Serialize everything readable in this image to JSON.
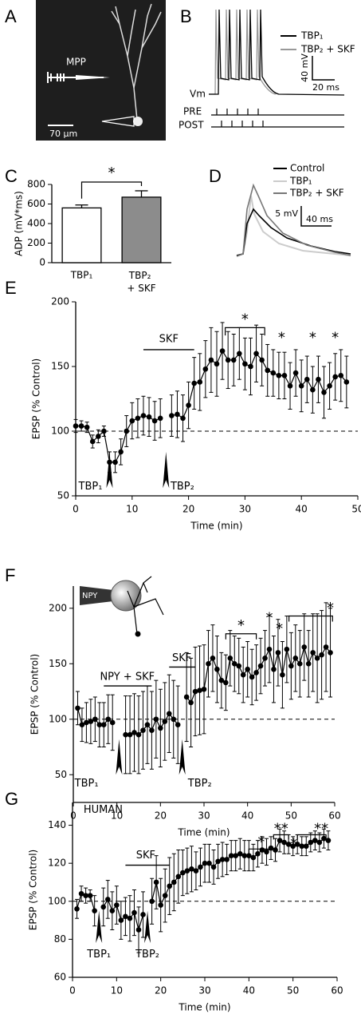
{
  "panel_labels": [
    "A",
    "B",
    "C",
    "D",
    "E",
    "F",
    "G"
  ],
  "panel_a": {
    "stimulus_label": "MPP",
    "scale_bar": "70 µm"
  },
  "panel_b": {
    "legend": [
      "TBP₁",
      "TBP₂ + SKF"
    ],
    "scale_y": "40 mV",
    "scale_x": "20 ms",
    "rows": [
      "Vm",
      "PRE",
      "POST"
    ]
  },
  "panel_d": {
    "legend": [
      "Control",
      "TBP₁",
      "TBP₂ + SKF"
    ],
    "scale_y": "5 mV",
    "scale_x": "40 ms"
  },
  "chart_data": [
    {
      "type": "bar",
      "ylabel": "ADP (mV*ms)",
      "categories": [
        "TBP₁",
        "TBP₂ + SKF"
      ],
      "values": [
        560,
        670
      ],
      "errors": [
        30,
        65
      ],
      "colors": [
        "#ffffff",
        "#8c8c8c"
      ],
      "ylim": [
        0,
        800
      ],
      "yticks": [
        0,
        200,
        400,
        600,
        800
      ],
      "annotations": [
        "*"
      ]
    },
    {
      "type": "line",
      "xlabel": "Time (min)",
      "ylabel": "EPSP (% Control)",
      "color": "#000000",
      "x": [
        0,
        1,
        2,
        3,
        4,
        5,
        6,
        7,
        8,
        9,
        10,
        11,
        12,
        13,
        14,
        15,
        16,
        17,
        18,
        19,
        20,
        21,
        22,
        23,
        24,
        25,
        26,
        27,
        28,
        29,
        30,
        31,
        32,
        33,
        34,
        35,
        36,
        37,
        38,
        39,
        40,
        41,
        42,
        43,
        44,
        45,
        46,
        47,
        48
      ],
      "values": [
        104,
        104,
        103,
        92,
        96,
        100,
        76,
        76,
        84,
        100,
        108,
        110,
        112,
        111,
        108,
        110,
        null,
        112,
        113,
        110,
        120,
        137,
        138,
        148,
        155,
        152,
        162,
        155,
        155,
        160,
        152,
        150,
        160,
        155,
        147,
        145,
        143,
        143,
        135,
        145,
        135,
        140,
        132,
        140,
        130,
        135,
        142,
        143,
        138
      ],
      "errors": [
        5,
        4,
        4,
        5,
        5,
        4,
        8,
        8,
        10,
        12,
        14,
        15,
        15,
        15,
        15,
        15,
        null,
        16,
        18,
        18,
        18,
        20,
        22,
        22,
        25,
        25,
        22,
        22,
        20,
        20,
        20,
        22,
        22,
        20,
        20,
        18,
        18,
        18,
        18,
        18,
        20,
        18,
        18,
        18,
        20,
        18,
        18,
        20,
        20
      ],
      "xlim": [
        0,
        50
      ],
      "xticks": [
        0,
        10,
        20,
        30,
        40,
        50
      ],
      "ylim": [
        50,
        200
      ],
      "yticks": [
        50,
        100,
        150,
        200
      ],
      "reference_line": 100,
      "annotations": [
        "SKF",
        "*",
        "*",
        "*",
        "*",
        "TBP₁",
        "TBP₂"
      ]
    },
    {
      "type": "line",
      "xlabel": "Time (min)",
      "ylabel": "EPSP (% Control)",
      "color": "#000000",
      "inset_label": "NPY",
      "x": [
        1,
        2,
        3,
        4,
        5,
        6,
        7,
        8,
        9,
        10,
        11,
        12,
        13,
        14,
        15,
        16,
        17,
        18,
        19,
        20,
        21,
        22,
        23,
        24,
        25,
        26,
        27,
        28,
        29,
        30,
        31,
        32,
        33,
        34,
        35,
        36,
        37,
        38,
        39,
        40,
        41,
        42,
        43,
        44,
        45,
        46,
        47,
        48,
        49,
        50,
        51,
        52,
        53,
        54,
        55,
        56,
        57,
        58,
        59
      ],
      "values": [
        110,
        95,
        97,
        98,
        100,
        95,
        95,
        100,
        97,
        null,
        null,
        86,
        86,
        88,
        86,
        90,
        95,
        90,
        100,
        92,
        98,
        105,
        100,
        95,
        null,
        120,
        115,
        125,
        126,
        127,
        150,
        155,
        145,
        135,
        133,
        155,
        150,
        148,
        140,
        145,
        138,
        142,
        148,
        155,
        163,
        145,
        160,
        140,
        163,
        148,
        155,
        150,
        165,
        150,
        160,
        155,
        158,
        165,
        160
      ],
      "errors": [
        15,
        15,
        18,
        20,
        20,
        20,
        20,
        22,
        25,
        null,
        null,
        35,
        35,
        35,
        35,
        35,
        35,
        35,
        35,
        35,
        35,
        35,
        35,
        35,
        null,
        40,
        40,
        40,
        40,
        40,
        30,
        30,
        30,
        25,
        25,
        25,
        25,
        25,
        25,
        25,
        25,
        25,
        25,
        25,
        30,
        30,
        30,
        30,
        30,
        30,
        30,
        30,
        30,
        30,
        35,
        40,
        40,
        40,
        40
      ],
      "xlim": [
        0,
        60
      ],
      "xticks": [
        0,
        10,
        20,
        30,
        40,
        50,
        60
      ],
      "ylim": [
        25,
        220
      ],
      "yticks": [
        50,
        100,
        150,
        200
      ],
      "reference_line": 100,
      "annotations": [
        "NPY + SKF",
        "SKF",
        "*",
        "*",
        "*",
        "*",
        "TBP₁",
        "TBP₂"
      ]
    },
    {
      "type": "line",
      "xlabel": "Time (min)",
      "ylabel": "EPSP (% Control)",
      "color": "#000000",
      "x": [
        1,
        2,
        3,
        4,
        5,
        6,
        7,
        8,
        9,
        10,
        11,
        12,
        13,
        14,
        15,
        16,
        17,
        18,
        19,
        20,
        21,
        22,
        23,
        24,
        25,
        26,
        27,
        28,
        29,
        30,
        31,
        32,
        33,
        34,
        35,
        36,
        37,
        38,
        39,
        40,
        41,
        42,
        43,
        44,
        45,
        46,
        47,
        48,
        49,
        50,
        51,
        52,
        53,
        54,
        55,
        56,
        57,
        58
      ],
      "values": [
        96,
        104,
        103,
        103,
        95,
        null,
        97,
        101,
        95,
        98,
        90,
        92,
        91,
        94,
        85,
        93,
        null,
        100,
        110,
        98,
        103,
        108,
        110,
        113,
        115,
        116,
        117,
        116,
        118,
        120,
        120,
        118,
        121,
        122,
        122,
        124,
        124,
        125,
        124,
        124,
        123,
        125,
        127,
        126,
        128,
        127,
        132,
        131,
        130,
        129,
        130,
        129,
        129,
        131,
        132,
        131,
        133,
        132
      ],
      "errors": [
        5,
        4,
        4,
        3,
        8,
        null,
        10,
        10,
        10,
        10,
        10,
        10,
        12,
        12,
        12,
        12,
        null,
        12,
        14,
        14,
        14,
        15,
        15,
        14,
        12,
        12,
        12,
        10,
        10,
        10,
        10,
        9,
        9,
        9,
        8,
        8,
        8,
        8,
        8,
        8,
        7,
        7,
        7,
        7,
        6,
        6,
        6,
        6,
        5,
        5,
        5,
        5,
        5,
        5,
        5,
        5,
        5,
        5
      ],
      "xlim": [
        0,
        60
      ],
      "xticks": [
        0,
        10,
        20,
        30,
        40,
        50,
        60
      ],
      "ylim": [
        60,
        152
      ],
      "yticks": [
        60,
        80,
        100,
        120,
        140
      ],
      "reference_line": 100,
      "annotations": [
        "HUMAN",
        "SKF",
        "*",
        "**",
        "*",
        "**",
        "TBP₁",
        "TBP₂"
      ]
    }
  ]
}
